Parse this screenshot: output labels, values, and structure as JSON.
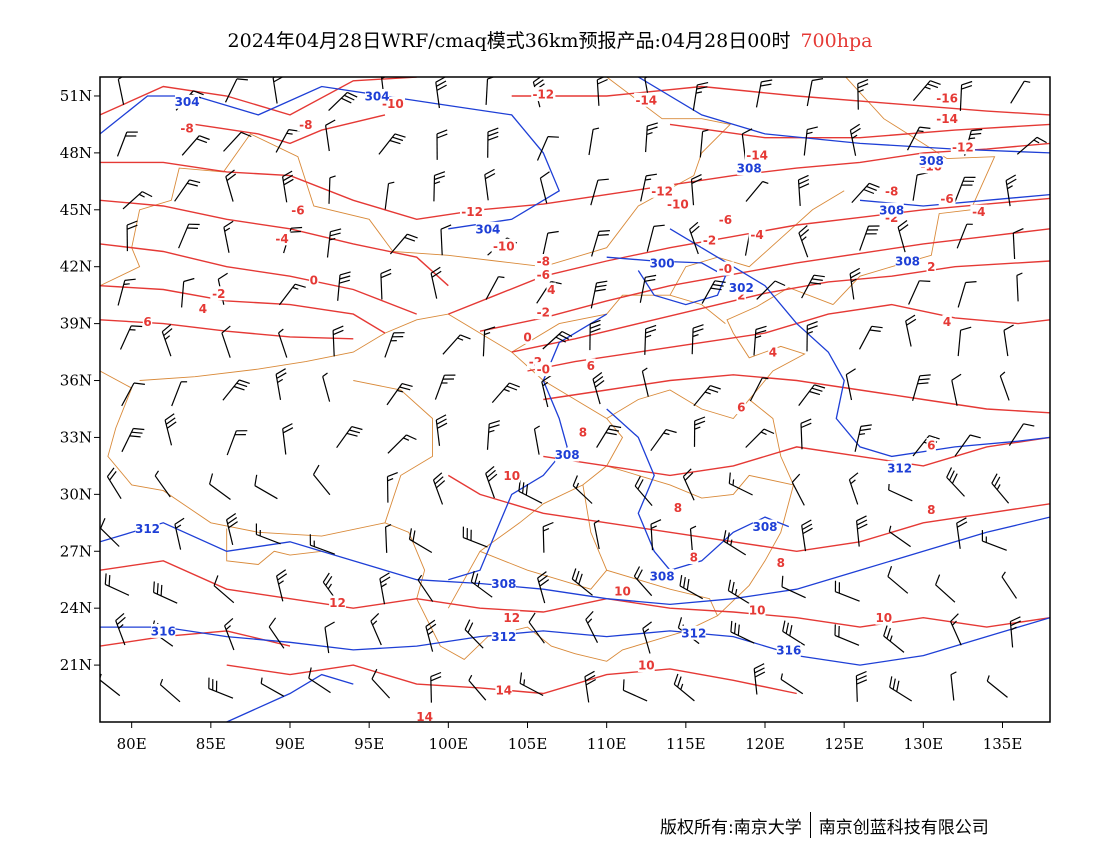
{
  "title": {
    "main": "2024年04月28日WRF/cmaq模式36km预报产品:04月28日00时",
    "level": "700hpa"
  },
  "colors": {
    "temperature": "#e53935",
    "height": "#1e3fd6",
    "border": "#d98a3a",
    "wind": "#000000",
    "level": "#e53935"
  },
  "map": {
    "lon_range": [
      78,
      138
    ],
    "lat_range": [
      18,
      52
    ],
    "lon_ticks": [
      "80E",
      "85E",
      "90E",
      "95E",
      "100E",
      "105E",
      "110E",
      "115E",
      "120E",
      "125E",
      "130E",
      "135E"
    ],
    "lat_ticks": [
      "51N",
      "48N",
      "45N",
      "42N",
      "39N",
      "36N",
      "33N",
      "30N",
      "27N",
      "24N",
      "21N"
    ],
    "lon_tick_values": [
      80,
      85,
      90,
      95,
      100,
      105,
      110,
      115,
      120,
      125,
      130,
      135
    ],
    "lat_tick_values": [
      51,
      48,
      45,
      42,
      39,
      36,
      33,
      30,
      27,
      24,
      21
    ]
  },
  "temperature_labels": [
    {
      "text": "-8",
      "lon": 83.5,
      "lat": 49.3
    },
    {
      "text": "-8",
      "lon": 91.0,
      "lat": 49.5
    },
    {
      "text": "-6",
      "lon": 90.5,
      "lat": 45.0
    },
    {
      "text": "-4",
      "lon": 89.5,
      "lat": 43.5
    },
    {
      "text": "0",
      "lon": 91.5,
      "lat": 41.3
    },
    {
      "text": "-2",
      "lon": 85.5,
      "lat": 40.6
    },
    {
      "text": "4",
      "lon": 84.5,
      "lat": 39.8
    },
    {
      "text": "6",
      "lon": 81.0,
      "lat": 39.1
    },
    {
      "text": "-10",
      "lon": 96.5,
      "lat": 50.6
    },
    {
      "text": "-12",
      "lon": 106.0,
      "lat": 51.1
    },
    {
      "text": "-14",
      "lon": 112.5,
      "lat": 50.8
    },
    {
      "text": "-16",
      "lon": 131.5,
      "lat": 50.9
    },
    {
      "text": "-14",
      "lon": 131.5,
      "lat": 49.8
    },
    {
      "text": "-12",
      "lon": 132.5,
      "lat": 48.3
    },
    {
      "text": "-10",
      "lon": 130.5,
      "lat": 47.3
    },
    {
      "text": "-14",
      "lon": 119.5,
      "lat": 47.9
    },
    {
      "text": "-12",
      "lon": 113.5,
      "lat": 46.0
    },
    {
      "text": "-10",
      "lon": 114.5,
      "lat": 45.3
    },
    {
      "text": "-12",
      "lon": 101.5,
      "lat": 44.9
    },
    {
      "text": "-10",
      "lon": 103.5,
      "lat": 43.1
    },
    {
      "text": "-8",
      "lon": 106.0,
      "lat": 42.3
    },
    {
      "text": "-6",
      "lon": 106.0,
      "lat": 41.6
    },
    {
      "text": "4",
      "lon": 106.5,
      "lat": 40.8
    },
    {
      "text": "-2",
      "lon": 106.0,
      "lat": 39.6
    },
    {
      "text": "0",
      "lon": 105.0,
      "lat": 38.3
    },
    {
      "text": "-2",
      "lon": 105.5,
      "lat": 37.0
    },
    {
      "text": "-8",
      "lon": 128.0,
      "lat": 46.0
    },
    {
      "text": "-6",
      "lon": 131.5,
      "lat": 45.6
    },
    {
      "text": "-4",
      "lon": 133.5,
      "lat": 44.9
    },
    {
      "text": "-2",
      "lon": 128.0,
      "lat": 44.6
    },
    {
      "text": "-6",
      "lon": 117.5,
      "lat": 44.5
    },
    {
      "text": "-4",
      "lon": 119.5,
      "lat": 43.7
    },
    {
      "text": "-2",
      "lon": 116.5,
      "lat": 43.4
    },
    {
      "text": "-0",
      "lon": 117.5,
      "lat": 41.9
    },
    {
      "text": "2",
      "lon": 118.5,
      "lat": 40.5
    },
    {
      "text": "2",
      "lon": 130.5,
      "lat": 42.0
    },
    {
      "text": "4",
      "lon": 131.5,
      "lat": 39.1
    },
    {
      "text": "4",
      "lon": 120.5,
      "lat": 37.5
    },
    {
      "text": "6",
      "lon": 109.0,
      "lat": 36.8
    },
    {
      "text": "6",
      "lon": 118.5,
      "lat": 34.6
    },
    {
      "text": "8",
      "lon": 108.5,
      "lat": 33.3
    },
    {
      "text": "6",
      "lon": 130.5,
      "lat": 32.6
    },
    {
      "text": "10",
      "lon": 104.0,
      "lat": 31.0
    },
    {
      "text": "8",
      "lon": 114.5,
      "lat": 29.3
    },
    {
      "text": "8",
      "lon": 130.5,
      "lat": 29.2
    },
    {
      "text": "8",
      "lon": 115.5,
      "lat": 26.7
    },
    {
      "text": "8",
      "lon": 121.0,
      "lat": 26.4
    },
    {
      "text": "10",
      "lon": 111.0,
      "lat": 24.9
    },
    {
      "text": "12",
      "lon": 93.0,
      "lat": 24.3
    },
    {
      "text": "12",
      "lon": 104.0,
      "lat": 23.5
    },
    {
      "text": "10",
      "lon": 119.5,
      "lat": 23.9
    },
    {
      "text": "10",
      "lon": 127.5,
      "lat": 23.5
    },
    {
      "text": "10",
      "lon": 112.5,
      "lat": 21.0
    },
    {
      "text": "14",
      "lon": 103.5,
      "lat": 19.7
    },
    {
      "text": "14",
      "lon": 98.5,
      "lat": 18.3
    },
    {
      "text": "-0",
      "lon": 106.0,
      "lat": 36.6
    }
  ],
  "height_labels": [
    {
      "text": "304",
      "lon": 83.5,
      "lat": 50.7
    },
    {
      "text": "304",
      "lon": 95.5,
      "lat": 51.0
    },
    {
      "text": "304",
      "lon": 102.5,
      "lat": 44.0
    },
    {
      "text": "308",
      "lon": 119.0,
      "lat": 47.2
    },
    {
      "text": "308",
      "lon": 130.5,
      "lat": 47.6
    },
    {
      "text": "308",
      "lon": 128.0,
      "lat": 45.0
    },
    {
      "text": "308",
      "lon": 129.0,
      "lat": 42.3
    },
    {
      "text": "300",
      "lon": 113.5,
      "lat": 42.2
    },
    {
      "text": "302",
      "lon": 118.5,
      "lat": 40.9
    },
    {
      "text": "308",
      "lon": 107.5,
      "lat": 32.1
    },
    {
      "text": "312",
      "lon": 128.5,
      "lat": 31.4
    },
    {
      "text": "308",
      "lon": 120.0,
      "lat": 28.3
    },
    {
      "text": "308",
      "lon": 113.5,
      "lat": 25.7
    },
    {
      "text": "308",
      "lon": 103.5,
      "lat": 25.3
    },
    {
      "text": "312",
      "lon": 81.0,
      "lat": 28.2
    },
    {
      "text": "316",
      "lon": 82.0,
      "lat": 22.8
    },
    {
      "text": "312",
      "lon": 103.5,
      "lat": 22.5
    },
    {
      "text": "312",
      "lon": 115.5,
      "lat": 22.7
    },
    {
      "text": "316",
      "lon": 121.5,
      "lat": 21.8
    }
  ],
  "copyright": {
    "left": "版权所有:南京大学",
    "right": "南京创蓝科技有限公司"
  }
}
